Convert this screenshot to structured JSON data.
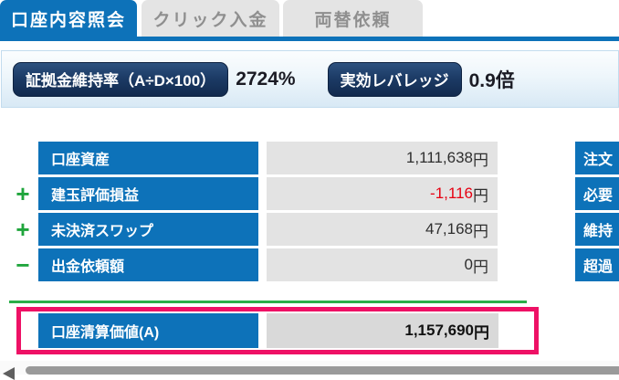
{
  "tabs": [
    {
      "label": "口座内容照会",
      "active": true
    },
    {
      "label": "クリック入金",
      "active": false
    },
    {
      "label": "両替依頼",
      "active": false
    }
  ],
  "summary": {
    "margin_ratio_label": "証拠金維持率（A÷D×100）",
    "margin_ratio_value": "2724%",
    "leverage_label": "実効レバレッジ",
    "leverage_value": "0.9倍"
  },
  "account_table": {
    "rows": [
      {
        "sign": "",
        "label": "口座資産",
        "amount": "1,111,638",
        "unit": "円",
        "amount_color": "#2e2e2e"
      },
      {
        "sign": "+",
        "label": "建玉評価損益",
        "amount": "-1,116",
        "unit": "円",
        "amount_color": "#e60012"
      },
      {
        "sign": "+",
        "label": "未決済スワップ",
        "amount": "47,168",
        "unit": "円",
        "amount_color": "#2e2e2e"
      },
      {
        "sign": "−",
        "label": "出金依頼額",
        "amount": "0",
        "unit": "円",
        "amount_color": "#2e2e2e"
      }
    ],
    "total_row": {
      "label": "口座清算価値(A)",
      "amount": "1,157,690",
      "unit": "円"
    }
  },
  "right_table": {
    "rows": [
      {
        "label": "注文"
      },
      {
        "label": "必要"
      },
      {
        "label": "維持"
      },
      {
        "label": "超過"
      }
    ]
  },
  "colors": {
    "accent_blue": "#0d72b9",
    "badge_navy": "#1c3b66",
    "highlight_pink": "#ee1165",
    "operator_green": "#1fa53c",
    "sum_line_green": "#2bae49",
    "negative_red": "#e60012"
  }
}
